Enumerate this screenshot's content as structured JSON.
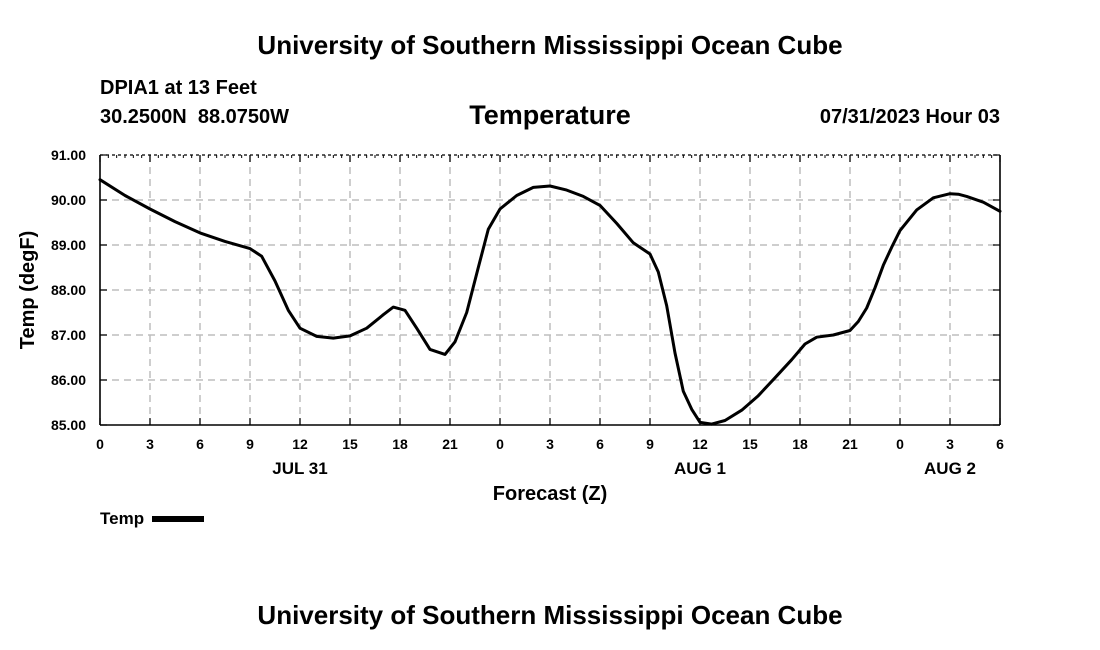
{
  "header": {
    "title": "University of Southern Mississippi Ocean Cube",
    "station": "DPIA1 at 13 Feet",
    "coords": "30.2500N  88.0750W",
    "timestamp": "07/31/2023 Hour 03"
  },
  "footer": {
    "title": "University of Southern Mississippi Ocean Cube"
  },
  "legend": {
    "label": "Temp"
  },
  "chart_data": {
    "type": "line",
    "title": "Temperature",
    "xlabel": "Forecast (Z)",
    "ylabel": "Temp (degF)",
    "xlim": [
      0,
      54
    ],
    "ylim": [
      85.0,
      91.0
    ],
    "grid": true,
    "xticks": [
      0,
      3,
      6,
      9,
      12,
      15,
      18,
      21,
      24,
      27,
      30,
      33,
      36,
      39,
      42,
      45,
      48,
      51,
      54
    ],
    "xtick_labels": [
      "0",
      "3",
      "6",
      "9",
      "12",
      "15",
      "18",
      "21",
      "0",
      "3",
      "6",
      "9",
      "12",
      "15",
      "18",
      "21",
      "0",
      "3",
      "6"
    ],
    "yticks": [
      85.0,
      86.0,
      87.0,
      88.0,
      89.0,
      90.0,
      91.0
    ],
    "ytick_labels": [
      "85.00",
      "86.00",
      "87.00",
      "88.00",
      "89.00",
      "90.00",
      "91.00"
    ],
    "date_labels": [
      {
        "x": 12,
        "label": "JUL 31"
      },
      {
        "x": 36,
        "label": "AUG 1"
      },
      {
        "x": 51,
        "label": "AUG 2"
      }
    ],
    "series": [
      {
        "name": "Temp",
        "color": "#000000",
        "x": [
          0,
          1.5,
          3,
          4.5,
          6,
          7.5,
          9,
          9.7,
          10.5,
          11.3,
          12,
          13,
          14,
          15,
          16,
          17,
          17.6,
          18.3,
          19,
          19.8,
          20.7,
          21.3,
          22,
          22.7,
          23.3,
          24,
          25,
          26,
          27,
          28,
          29,
          30,
          31,
          32,
          33,
          33.5,
          34,
          34.5,
          35,
          35.5,
          36,
          36.7,
          37.5,
          38.5,
          39.5,
          40.5,
          41.5,
          42.3,
          43,
          44,
          45,
          45.5,
          46,
          46.5,
          47,
          47.5,
          48,
          49,
          50,
          51,
          51.5,
          52,
          53,
          54
        ],
        "values": [
          90.45,
          90.1,
          89.8,
          89.52,
          89.27,
          89.08,
          88.92,
          88.75,
          88.2,
          87.55,
          87.15,
          86.97,
          86.93,
          86.98,
          87.15,
          87.45,
          87.62,
          87.55,
          87.15,
          86.68,
          86.57,
          86.85,
          87.5,
          88.5,
          89.35,
          89.8,
          90.1,
          90.28,
          90.31,
          90.22,
          90.08,
          89.88,
          89.48,
          89.05,
          88.8,
          88.4,
          87.65,
          86.6,
          85.75,
          85.35,
          85.06,
          85.02,
          85.1,
          85.33,
          85.65,
          86.05,
          86.45,
          86.8,
          86.95,
          87.0,
          87.1,
          87.3,
          87.6,
          88.05,
          88.55,
          88.95,
          89.32,
          89.78,
          90.05,
          90.14,
          90.13,
          90.08,
          89.95,
          89.75
        ]
      }
    ]
  }
}
